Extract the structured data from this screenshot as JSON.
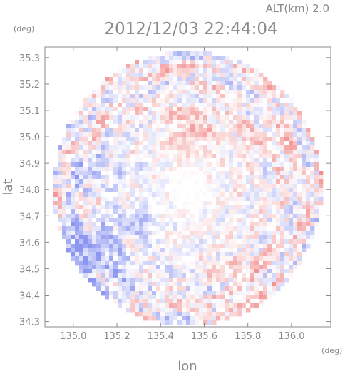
{
  "chart_data": {
    "type": "heatmap",
    "title": "2012/12/03 22:44:04",
    "altitude_label": "ALT(km) 2.0",
    "xlabel": "lon",
    "ylabel": "lat",
    "x_unit": "(deg)",
    "y_unit": "(deg)",
    "xlim": [
      134.87,
      136.18
    ],
    "ylim": [
      34.28,
      35.34
    ],
    "x_ticks": [
      135.0,
      135.2,
      135.4,
      135.6,
      135.8,
      136.0
    ],
    "x_tick_labels": [
      "135.0",
      "135.2",
      "135.4",
      "135.6",
      "135.8",
      "136.0"
    ],
    "y_ticks": [
      34.3,
      34.4,
      34.5,
      34.6,
      34.7,
      34.8,
      34.9,
      35.0,
      35.1,
      35.2,
      35.3
    ],
    "y_tick_labels": [
      "34.3",
      "34.4",
      "34.5",
      "34.6",
      "34.7",
      "34.8",
      "34.9",
      "35.0",
      "35.1",
      "35.2",
      "35.3"
    ],
    "radar_center": [
      135.525,
      34.805
    ],
    "radar_radius_lon": 0.615,
    "radar_radius_lat": 0.52,
    "colors": {
      "positive": "#f08080",
      "negative": "#8c96f0",
      "neutral": "#ffffff",
      "axis": "#8a8a8a"
    },
    "regions": [
      {
        "name": "west-negative-band",
        "lon": 135.05,
        "lat": 34.87,
        "rlon": 0.2,
        "rlat": 0.06,
        "value": -0.45
      },
      {
        "name": "southwest-negative",
        "lon": 135.05,
        "lat": 34.55,
        "rlon": 0.2,
        "rlat": 0.14,
        "value": -0.75
      },
      {
        "name": "south-center-negative",
        "lon": 135.3,
        "lat": 34.68,
        "rlon": 0.08,
        "rlat": 0.05,
        "value": -0.45
      },
      {
        "name": "north-positive",
        "lon": 135.55,
        "lat": 35.03,
        "rlon": 0.12,
        "rlat": 0.1,
        "value": 0.45
      },
      {
        "name": "northeast-positive",
        "lon": 135.87,
        "lat": 35.0,
        "rlon": 0.12,
        "rlat": 0.06,
        "value": 0.35
      },
      {
        "name": "east-neutral",
        "lon": 135.9,
        "lat": 34.85,
        "rlon": 0.16,
        "rlat": 0.08,
        "value": 0.05
      },
      {
        "name": "southeast-positive",
        "lon": 135.8,
        "lat": 34.45,
        "rlon": 0.14,
        "rlat": 0.08,
        "value": 0.3
      },
      {
        "name": "south-neutral",
        "lon": 135.45,
        "lat": 34.45,
        "rlon": 0.14,
        "rlat": 0.12,
        "value": -0.05
      }
    ]
  }
}
